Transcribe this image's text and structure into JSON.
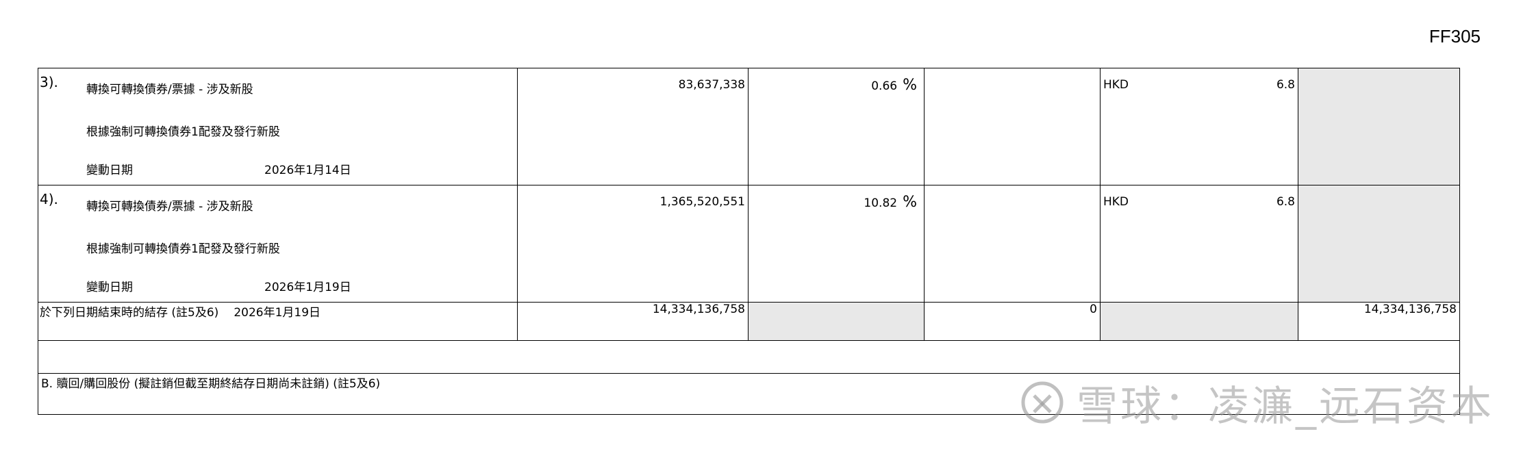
{
  "form_code": "FF305",
  "items": [
    {
      "number": "3).",
      "title": "轉換可轉換債券/票據 - 涉及新股",
      "description": "根據強制可轉換債券1配發及發行新股",
      "change_date_label": "變動日期",
      "change_date": "2026年1月14日",
      "shares": "83,637,338",
      "percent": "0.66",
      "percent_sign": "%",
      "currency": "HKD",
      "price": "6.8"
    },
    {
      "number": "4).",
      "title": "轉換可轉換債券/票據 - 涉及新股",
      "description": "根據強制可轉換債券1配發及發行新股",
      "change_date_label": "變動日期",
      "change_date": "2026年1月19日",
      "shares": "1,365,520,551",
      "percent": "10.82",
      "percent_sign": "%",
      "currency": "HKD",
      "price": "6.8"
    }
  ],
  "closing_balance": {
    "label": "於下列日期結束時的結存 (註5及6)",
    "date": "2026年1月19日",
    "shares": "14,334,136,758",
    "mid_value": "0",
    "total": "14,334,136,758"
  },
  "section_b": {
    "label": "B. 贖回/購回股份 (擬註銷但截至期終結存日期尚未註銷) (註5及6)"
  },
  "watermark": {
    "text": "雪球：凌濂_远石资本"
  }
}
